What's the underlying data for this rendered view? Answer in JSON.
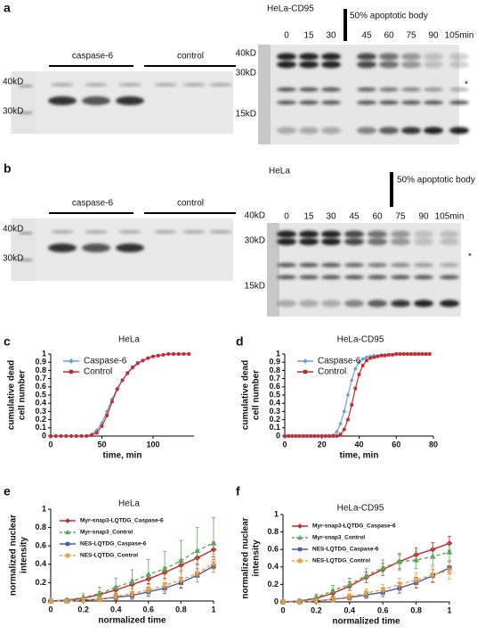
{
  "panel_labels": [
    "a",
    "b",
    "c",
    "d",
    "e",
    "f"
  ],
  "blots": [
    {
      "title": "HeLa-CD95",
      "groups": [
        "caspase-6",
        "control"
      ],
      "left_markers": [
        "40kD",
        "30kD"
      ],
      "right_markers": [
        "40kD",
        "30kD",
        "15kD"
      ],
      "times": [
        "0",
        "15",
        "30",
        "45",
        "60",
        "75",
        "90",
        "105min"
      ],
      "annotation": "50% apoptotic body",
      "asterisk": "*"
    },
    {
      "title": "HeLa",
      "groups": [
        "caspase-6",
        "control"
      ],
      "left_markers": [
        "40kD",
        "30kD"
      ],
      "right_markers": [
        "40kD",
        "30kD",
        "15kD"
      ],
      "times": [
        "0",
        "15",
        "30",
        "45",
        "60",
        "75",
        "90",
        "105min"
      ],
      "annotation": "50% apoptotic body",
      "asterisk": "*"
    }
  ],
  "chart_data": [
    {
      "type": "line",
      "title": "HeLa",
      "xlabel": "time, min",
      "ylabel": [
        "cumulative dead",
        "cell number"
      ],
      "xlim": [
        0,
        140
      ],
      "ylim": [
        0,
        1
      ],
      "xticks": [
        0,
        50,
        100
      ],
      "yticks": [
        0,
        0.1,
        0.2,
        0.3,
        0.4,
        0.5,
        0.6,
        0.7,
        0.8,
        0.9,
        1
      ],
      "legend": "upper left",
      "x": [
        0,
        5,
        10,
        15,
        20,
        25,
        30,
        35,
        40,
        45,
        50,
        55,
        60,
        65,
        70,
        75,
        80,
        85,
        90,
        95,
        100,
        105,
        110,
        115,
        120,
        125,
        130,
        135
      ],
      "series": [
        {
          "name": "Caspase-6",
          "color": "#6a9fd4",
          "marker": "diamond",
          "values": [
            0,
            0,
            0,
            0,
            0,
            0,
            0,
            0,
            0.02,
            0.07,
            0.16,
            0.3,
            0.45,
            0.58,
            0.68,
            0.76,
            0.83,
            0.88,
            0.92,
            0.95,
            0.97,
            0.98,
            0.99,
            1,
            1,
            1,
            1,
            1
          ]
        },
        {
          "name": "Control",
          "color": "#c8282c",
          "marker": "square",
          "values": [
            0,
            0,
            0,
            0,
            0,
            0,
            0,
            0,
            0.01,
            0.04,
            0.12,
            0.25,
            0.42,
            0.57,
            0.68,
            0.77,
            0.84,
            0.89,
            0.92,
            0.95,
            0.97,
            0.98,
            0.99,
            1,
            1,
            1,
            1,
            1
          ]
        }
      ]
    },
    {
      "type": "line",
      "title": "HeLa-CD95",
      "xlabel": "time, min",
      "ylabel": [
        "cumulative dead",
        "cell number"
      ],
      "xlim": [
        0,
        80
      ],
      "ylim": [
        0,
        1
      ],
      "xticks": [
        0,
        20,
        40,
        60,
        80
      ],
      "yticks": [
        0,
        0.1,
        0.2,
        0.3,
        0.4,
        0.5,
        0.6,
        0.7,
        0.8,
        0.9,
        1
      ],
      "legend": "upper left",
      "x": [
        0,
        2,
        4,
        6,
        8,
        10,
        12,
        14,
        16,
        18,
        20,
        22,
        24,
        26,
        28,
        30,
        32,
        34,
        36,
        38,
        40,
        42,
        44,
        46,
        48,
        50,
        52,
        54,
        56,
        58,
        60,
        62,
        64,
        66,
        68,
        70,
        72,
        74,
        76,
        78
      ],
      "series": [
        {
          "name": "Caspase-6",
          "color": "#6a9fd4",
          "marker": "diamond",
          "values": [
            0,
            0,
            0,
            0,
            0,
            0,
            0,
            0,
            0,
            0,
            0,
            0,
            0,
            0.01,
            0.05,
            0.15,
            0.3,
            0.5,
            0.68,
            0.82,
            0.9,
            0.94,
            0.96,
            0.97,
            0.98,
            0.98,
            0.99,
            0.99,
            0.99,
            0.99,
            1,
            1,
            1,
            1,
            1,
            1,
            1,
            1,
            1,
            1
          ]
        },
        {
          "name": "Control",
          "color": "#c8282c",
          "marker": "square",
          "values": [
            0,
            0,
            0,
            0,
            0,
            0,
            0,
            0,
            0,
            0,
            0,
            0,
            0,
            0,
            0,
            0.02,
            0.08,
            0.2,
            0.38,
            0.58,
            0.75,
            0.86,
            0.92,
            0.95,
            0.96,
            0.97,
            0.98,
            0.98,
            0.99,
            0.99,
            1,
            1,
            1,
            1,
            1,
            1,
            1,
            1,
            1,
            1
          ]
        }
      ]
    },
    {
      "type": "errorline",
      "title": "HeLa",
      "xlabel": "normalized time",
      "ylabel": [
        "normalized nuclear",
        "intensity"
      ],
      "xlim": [
        0,
        1
      ],
      "ylim": [
        0,
        1
      ],
      "xticks": [
        0,
        0.2,
        0.4,
        0.6,
        0.8,
        1
      ],
      "yticks": [
        0,
        0.2,
        0.4,
        0.6,
        0.8,
        1
      ],
      "legend": "upper left",
      "x": [
        0,
        0.1,
        0.2,
        0.3,
        0.4,
        0.5,
        0.6,
        0.7,
        0.8,
        0.9,
        1
      ],
      "series": [
        {
          "name": "Myr-snap3-LQTDG_Caspase-6",
          "color": "#c8282c",
          "marker": "diamond",
          "dash": false,
          "values": [
            0,
            0.01,
            0.03,
            0.07,
            0.12,
            0.18,
            0.24,
            0.31,
            0.39,
            0.47,
            0.56
          ],
          "errors": [
            0,
            0.01,
            0.02,
            0.03,
            0.04,
            0.05,
            0.05,
            0.06,
            0.06,
            0.07,
            0.08
          ]
        },
        {
          "name": "Myr-snap3_Control",
          "color": "#5aa85a",
          "marker": "triangle",
          "dash": true,
          "values": [
            0,
            0.01,
            0.04,
            0.08,
            0.15,
            0.21,
            0.29,
            0.35,
            0.44,
            0.55,
            0.63
          ],
          "errors": [
            0,
            0.02,
            0.04,
            0.07,
            0.1,
            0.13,
            0.16,
            0.19,
            0.22,
            0.25,
            0.28
          ]
        },
        {
          "name": "NES-LQTDG_Caspase-6",
          "color": "#4a5aa8",
          "marker": "square",
          "dash": false,
          "values": [
            0,
            0,
            0.01,
            0.02,
            0.04,
            0.06,
            0.1,
            0.14,
            0.2,
            0.28,
            0.38
          ],
          "errors": [
            0,
            0.01,
            0.01,
            0.02,
            0.03,
            0.04,
            0.05,
            0.06,
            0.06,
            0.07,
            0.07
          ]
        },
        {
          "name": "NES-LQTDG_Control",
          "color": "#e8a040",
          "marker": "x",
          "dash": true,
          "values": [
            0,
            0,
            0.01,
            0.02,
            0.05,
            0.08,
            0.12,
            0.17,
            0.23,
            0.3,
            0.41
          ],
          "errors": [
            0,
            0.01,
            0.02,
            0.03,
            0.04,
            0.05,
            0.06,
            0.07,
            0.08,
            0.09,
            0.1
          ]
        }
      ]
    },
    {
      "type": "errorline",
      "title": "HeLa-CD95",
      "xlabel": "normalized time",
      "ylabel": [
        "normalized nuclear",
        "intensity"
      ],
      "xlim": [
        0,
        1
      ],
      "ylim": [
        0,
        1
      ],
      "xticks": [
        0,
        0.2,
        0.4,
        0.6,
        0.8,
        1
      ],
      "yticks": [
        0,
        0.2,
        0.4,
        0.6,
        0.8,
        1
      ],
      "legend": "upper left",
      "x": [
        0,
        0.1,
        0.2,
        0.3,
        0.4,
        0.5,
        0.6,
        0.7,
        0.8,
        0.9,
        1
      ],
      "series": [
        {
          "name": "Myr-snap3-LQTDG_Caspase-6",
          "color": "#c8282c",
          "marker": "diamond",
          "dash": false,
          "values": [
            0,
            0.01,
            0.04,
            0.1,
            0.18,
            0.28,
            0.37,
            0.46,
            0.54,
            0.6,
            0.67
          ],
          "errors": [
            0,
            0.01,
            0.03,
            0.04,
            0.05,
            0.06,
            0.07,
            0.08,
            0.08,
            0.08,
            0.08
          ]
        },
        {
          "name": "Myr-snap3_Control",
          "color": "#5aa85a",
          "marker": "triangle",
          "dash": true,
          "values": [
            0,
            0.01,
            0.05,
            0.13,
            0.2,
            0.3,
            0.39,
            0.46,
            0.48,
            0.52,
            0.57
          ],
          "errors": [
            0,
            0.02,
            0.04,
            0.06,
            0.07,
            0.08,
            0.09,
            0.1,
            0.1,
            0.1,
            0.1
          ]
        },
        {
          "name": "NES-LQTDG_Caspase-6",
          "color": "#4a5aa8",
          "marker": "square",
          "dash": false,
          "values": [
            0,
            0,
            0.01,
            0.03,
            0.05,
            0.08,
            0.11,
            0.16,
            0.22,
            0.3,
            0.39
          ],
          "errors": [
            0,
            0.01,
            0.01,
            0.02,
            0.03,
            0.04,
            0.05,
            0.06,
            0.06,
            0.07,
            0.07
          ]
        },
        {
          "name": "NES-LQTDG_Control",
          "color": "#e8a040",
          "marker": "x",
          "dash": true,
          "values": [
            0,
            0,
            0.01,
            0.03,
            0.06,
            0.1,
            0.14,
            0.2,
            0.25,
            0.31,
            0.36
          ],
          "errors": [
            0,
            0.01,
            0.02,
            0.03,
            0.04,
            0.05,
            0.06,
            0.07,
            0.08,
            0.09,
            0.1
          ]
        }
      ]
    }
  ]
}
